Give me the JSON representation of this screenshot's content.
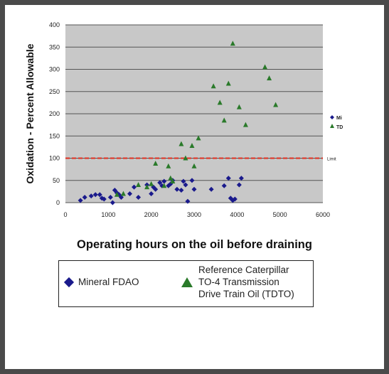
{
  "chart_data": {
    "type": "scatter",
    "title": "",
    "xlabel": "Operating hours on the oil before draining",
    "ylabel": "Oxidation - Percent Allowable",
    "xlim": [
      0,
      6000
    ],
    "ylim": [
      0,
      400
    ],
    "xticks": [
      "0",
      "1000",
      "2000",
      "3000",
      "4000",
      "5000",
      "6000"
    ],
    "yticks": [
      "0",
      "50",
      "100",
      "150",
      "200",
      "250",
      "300",
      "350",
      "400"
    ],
    "grid": "horizontal",
    "limit_line": {
      "value": 100,
      "label": "Limit",
      "color": "#e03020"
    },
    "inner_legend": [
      "Mi",
      "TD"
    ],
    "series": [
      {
        "name": "Mineral FDAO",
        "marker": "diamond",
        "color": "#1a1a8c",
        "points": [
          [
            350,
            5
          ],
          [
            450,
            12
          ],
          [
            600,
            15
          ],
          [
            700,
            18
          ],
          [
            800,
            18
          ],
          [
            850,
            10
          ],
          [
            900,
            8
          ],
          [
            1050,
            12
          ],
          [
            1100,
            0
          ],
          [
            1150,
            28
          ],
          [
            1200,
            22
          ],
          [
            1250,
            18
          ],
          [
            1300,
            12
          ],
          [
            1500,
            20
          ],
          [
            1600,
            35
          ],
          [
            1700,
            12
          ],
          [
            1900,
            40
          ],
          [
            2000,
            20
          ],
          [
            2050,
            35
          ],
          [
            2100,
            30
          ],
          [
            2200,
            45
          ],
          [
            2250,
            38
          ],
          [
            2300,
            48
          ],
          [
            2400,
            38
          ],
          [
            2450,
            42
          ],
          [
            2500,
            50
          ],
          [
            2600,
            30
          ],
          [
            2700,
            28
          ],
          [
            2750,
            48
          ],
          [
            2800,
            40
          ],
          [
            2850,
            3
          ],
          [
            2950,
            50
          ],
          [
            3000,
            30
          ],
          [
            3400,
            30
          ],
          [
            3700,
            38
          ],
          [
            3800,
            55
          ],
          [
            3850,
            10
          ],
          [
            3900,
            5
          ],
          [
            3950,
            8
          ],
          [
            4050,
            40
          ],
          [
            4100,
            55
          ]
        ]
      },
      {
        "name": "Reference Caterpillar TO-4 Transmission Drive Train Oil (TDTO)",
        "marker": "triangle",
        "color": "#2a7a2a",
        "points": [
          [
            1200,
            18
          ],
          [
            1350,
            20
          ],
          [
            1700,
            40
          ],
          [
            1900,
            35
          ],
          [
            2000,
            42
          ],
          [
            2100,
            88
          ],
          [
            2300,
            38
          ],
          [
            2400,
            82
          ],
          [
            2450,
            55
          ],
          [
            2500,
            48
          ],
          [
            2700,
            132
          ],
          [
            2800,
            100
          ],
          [
            2950,
            128
          ],
          [
            3000,
            82
          ],
          [
            3100,
            145
          ],
          [
            3450,
            262
          ],
          [
            3600,
            225
          ],
          [
            3700,
            185
          ],
          [
            3800,
            268
          ],
          [
            3900,
            358
          ],
          [
            4050,
            215
          ],
          [
            4200,
            175
          ],
          [
            4650,
            305
          ],
          [
            4750,
            280
          ],
          [
            4900,
            220
          ]
        ]
      }
    ]
  },
  "caption": "Operating hours on the oil before draining",
  "legend": {
    "mineral": "Mineral FDAO",
    "tdto_lines": [
      "Reference Caterpillar",
      "TO-4 Transmission",
      "Drive Train Oil (TDTO)"
    ]
  }
}
